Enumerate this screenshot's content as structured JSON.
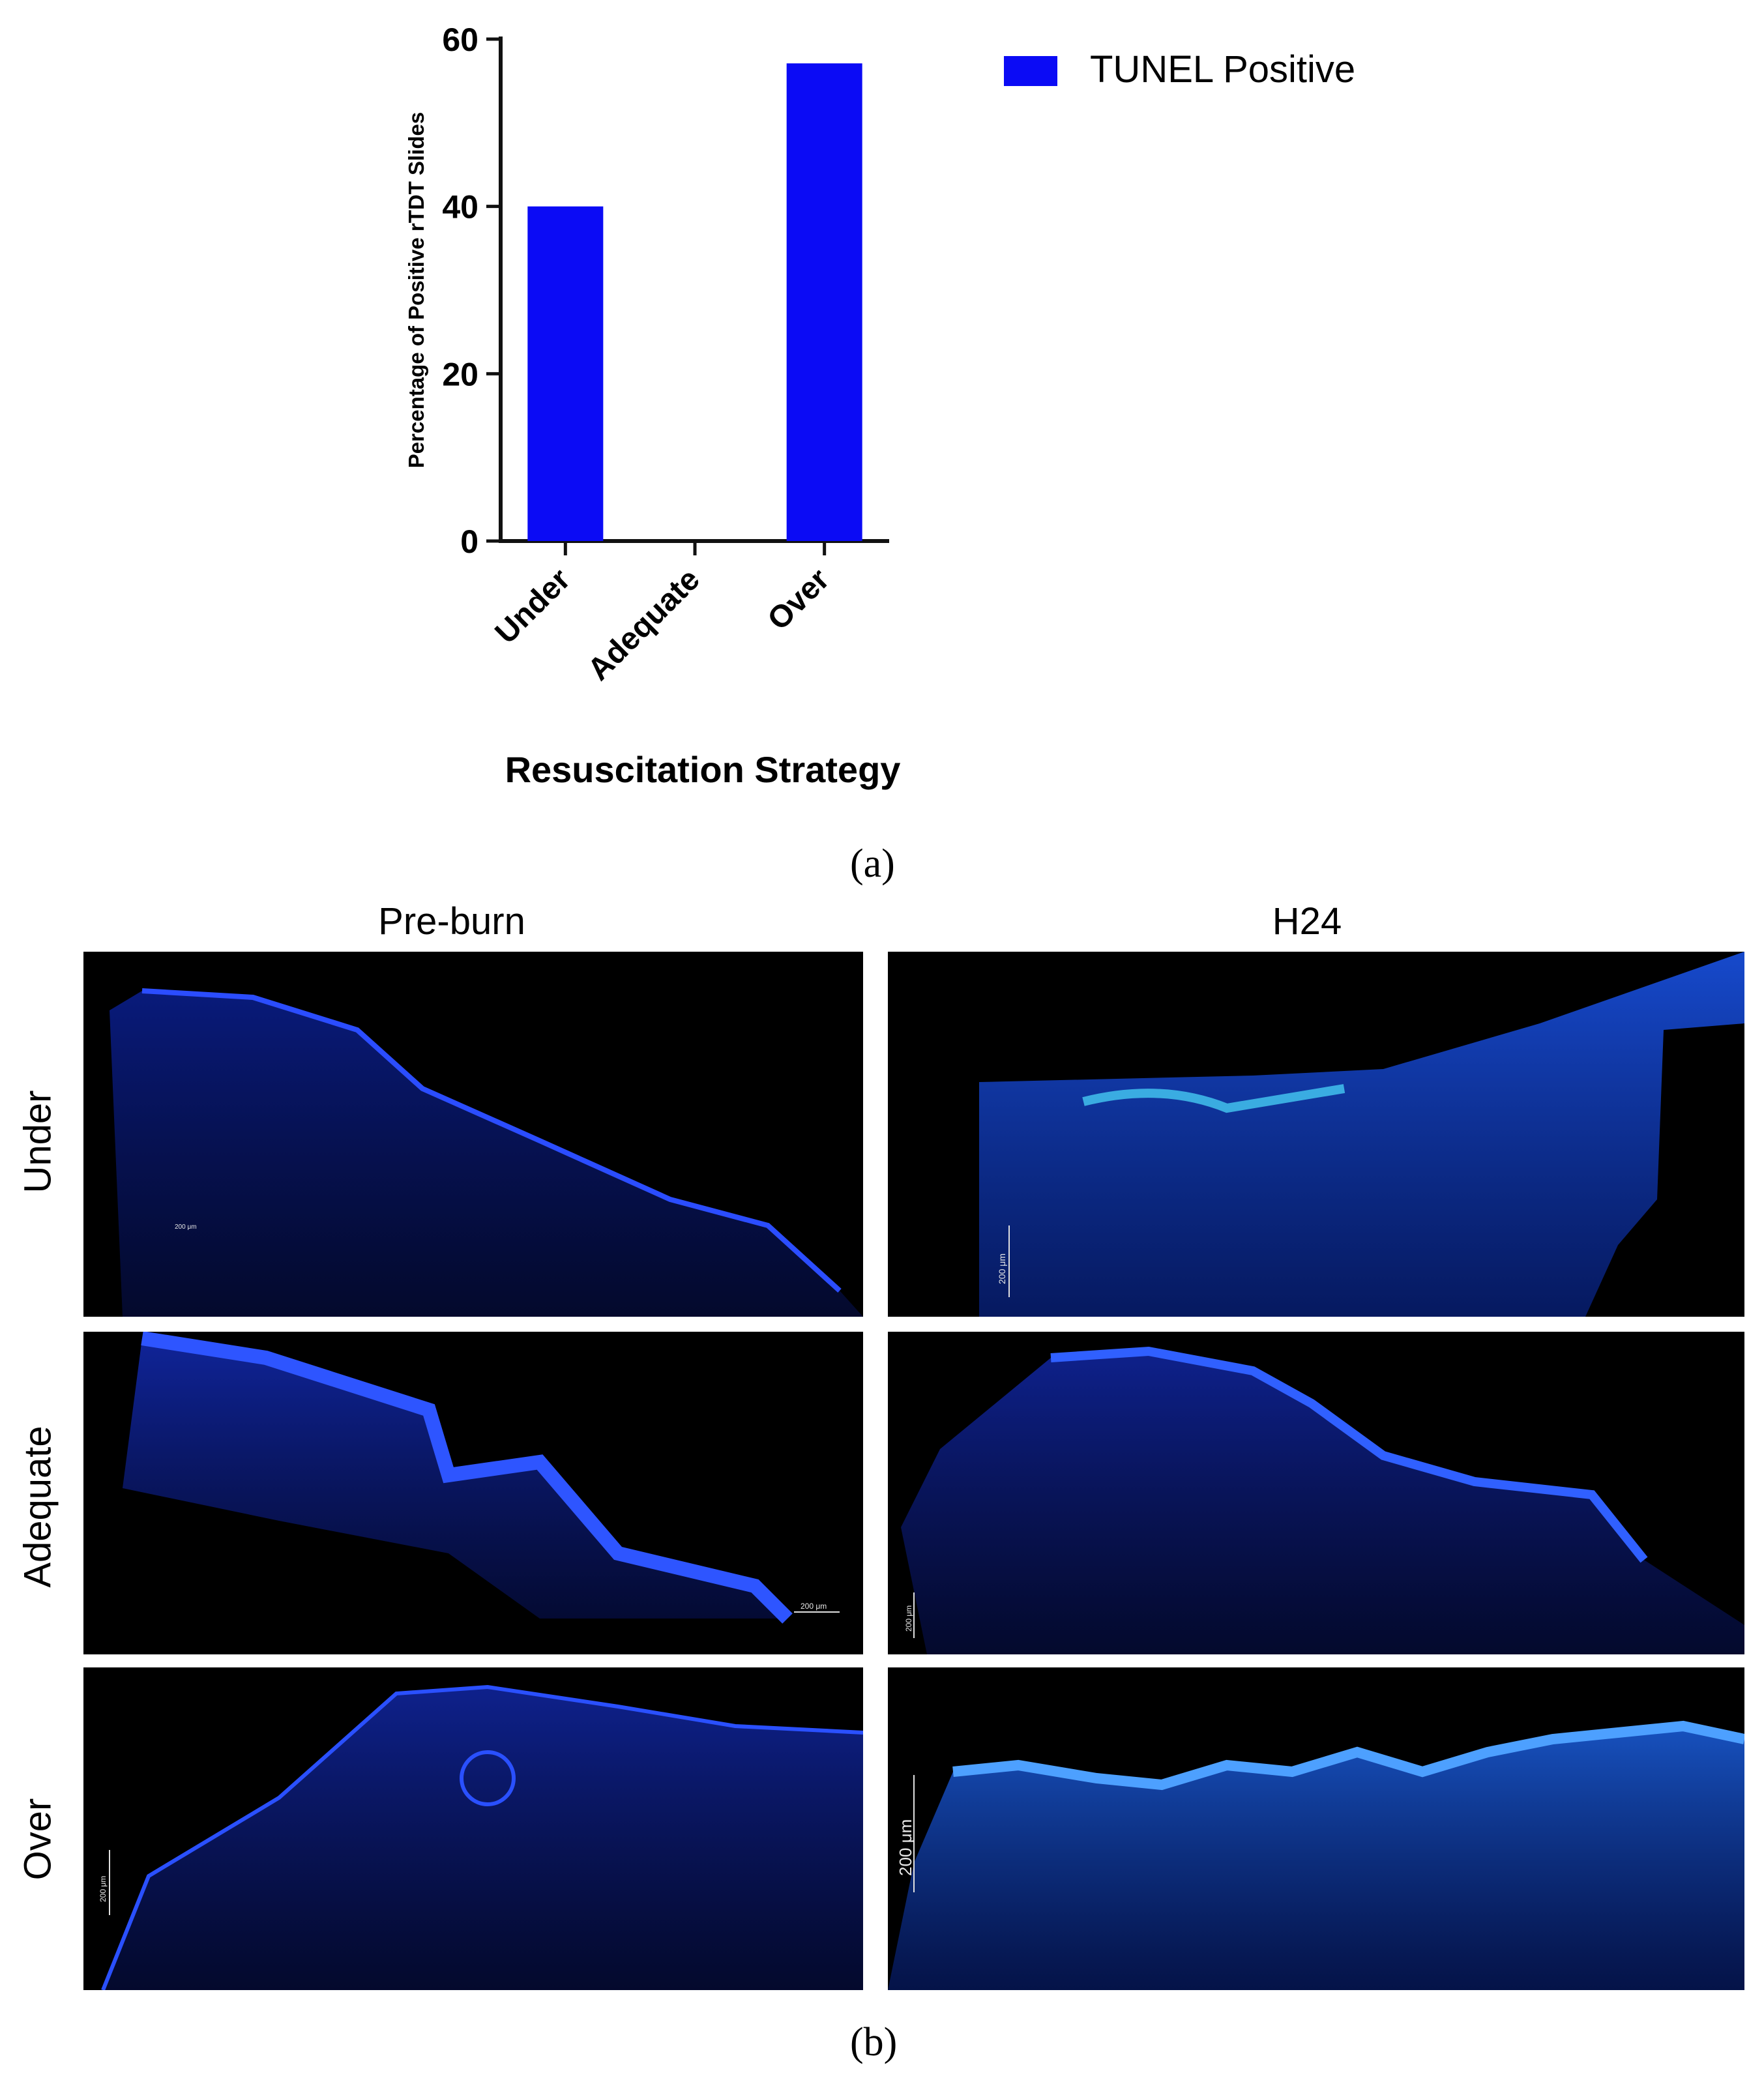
{
  "panel_a_label": "(a)",
  "panel_b_label": "(b)",
  "chart_data": {
    "type": "bar",
    "categories": [
      "Under",
      "Adequate",
      "Over"
    ],
    "series": [
      {
        "name": "TUNEL Positive",
        "values": [
          40,
          0,
          57.1
        ],
        "color": "#0b0bf5"
      }
    ],
    "xlabel": "Resuscitation Strategy",
    "ylabel": "Percentage of Positive  rTDT Slides",
    "ylim": [
      0,
      60
    ],
    "yticks": [
      0,
      20,
      40,
      60
    ],
    "legend_position": "top-right",
    "grid": false
  },
  "micrographs": {
    "columns": [
      "Pre-burn",
      "H24"
    ],
    "rows": [
      "Under",
      "Adequate",
      "Over"
    ],
    "images": [
      {
        "name": "micrograph-under-preburn",
        "scale_label": "200 μm",
        "stain_color": "#1a3cff"
      },
      {
        "name": "micrograph-under-h24",
        "scale_label": "200 μm",
        "stain_color": "#1a5cff"
      },
      {
        "name": "micrograph-adequate-preburn",
        "scale_label": "200 μm",
        "stain_color": "#1a3cff"
      },
      {
        "name": "micrograph-adequate-h24",
        "scale_label": "200 μm",
        "stain_color": "#1a3cff"
      },
      {
        "name": "micrograph-over-preburn",
        "scale_label": "200 μm",
        "stain_color": "#1a3cff"
      },
      {
        "name": "micrograph-over-h24",
        "scale_label": "200 μm",
        "stain_color": "#1f6dff"
      }
    ]
  }
}
